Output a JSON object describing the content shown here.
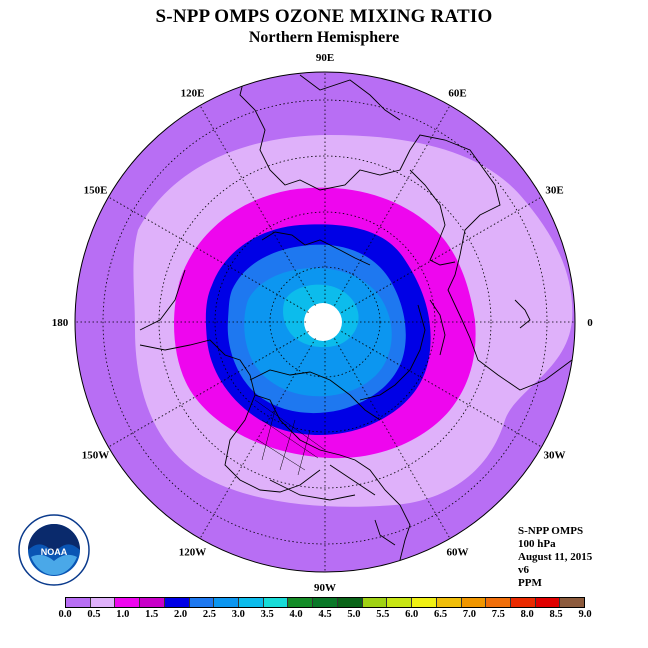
{
  "title": "S-NPP OMPS OZONE MIXING RATIO",
  "subtitle": "Northern Hemisphere",
  "longitude_labels": [
    {
      "text": "90E",
      "lon": 90
    },
    {
      "text": "60E",
      "lon": 60
    },
    {
      "text": "30E",
      "lon": 30
    },
    {
      "text": "0",
      "lon": 0
    },
    {
      "text": "30W",
      "lon": -30
    },
    {
      "text": "60W",
      "lon": -60
    },
    {
      "text": "90W",
      "lon": -90
    },
    {
      "text": "120W",
      "lon": -120
    },
    {
      "text": "150W",
      "lon": -150
    },
    {
      "text": "180",
      "lon": 180
    },
    {
      "text": "150E",
      "lon": 150
    },
    {
      "text": "120E",
      "lon": 120
    }
  ],
  "info": {
    "instrument": "S-NPP OMPS",
    "level": "100 hPa",
    "date": "August 11, 2015",
    "version": "v6",
    "units": "PPM"
  },
  "logo": {
    "text": "NOAA",
    "icon": "noaa-logo-icon"
  },
  "colorbar": {
    "colors": [
      "#b86ef4",
      "#dfb1fa",
      "#ee06ee",
      "#c800c8",
      "#0000e6",
      "#1e78f0",
      "#0c96f0",
      "#0cbcec",
      "#18dcd8",
      "#148c28",
      "#0a7828",
      "#0a6418",
      "#a0d214",
      "#c8e614",
      "#f0f014",
      "#f0be0a",
      "#f09600",
      "#f06e0a",
      "#ea2a00",
      "#e00000",
      "#8c5a3c"
    ],
    "ticks": [
      "0.0",
      "0.5",
      "1.0",
      "1.5",
      "2.0",
      "2.5",
      "3.0",
      "3.5",
      "4.0",
      "4.5",
      "5.0",
      "5.5",
      "6.0",
      "6.5",
      "7.0",
      "7.5",
      "8.0",
      "8.5",
      "9.0"
    ]
  },
  "field_colors": {
    "outer": "#b86ef4",
    "lavender": "#dfb1fa",
    "magenta": "#ee06ee",
    "blue": "#0000e6",
    "mid_blue": "#1e78f0",
    "light_blue": "#0c96f0",
    "sky": "#0cbcec",
    "pole": "#ffffff"
  }
}
